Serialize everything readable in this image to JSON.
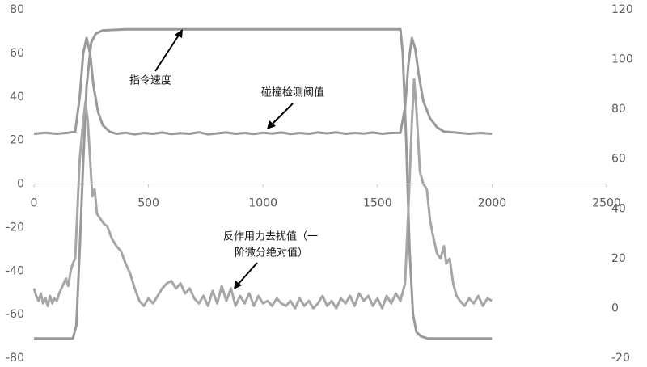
{
  "chart_data": {
    "type": "line",
    "xlim": [
      0,
      2500
    ],
    "xticks": [
      0,
      500,
      1000,
      1500,
      2000,
      2500
    ],
    "ylim": [
      -80,
      80
    ],
    "yticks": [
      -80,
      -60,
      -40,
      -20,
      0,
      20,
      40,
      60,
      80
    ],
    "y2lim": [
      -20,
      120
    ],
    "y2ticks": [
      -20,
      0,
      20,
      40,
      60,
      80,
      100,
      120
    ],
    "grid": false,
    "annotations": [
      {
        "text": [
          "指令速度"
        ]
      },
      {
        "text": [
          "碰撞检测阈值"
        ]
      },
      {
        "text": [
          "反作用力去扰值（一",
          "阶微分绝对值）"
        ]
      }
    ],
    "series": [
      {
        "name": "指令速度",
        "color": "#999999",
        "axis": "y",
        "x": [
          0,
          100,
          170,
          185,
          200,
          215,
          230,
          250,
          270,
          300,
          400,
          800,
          1200,
          1600,
          1610,
          1625,
          1640,
          1655,
          1670,
          1690,
          1720,
          1800,
          2000
        ],
        "values": [
          -71,
          -71,
          -71,
          -65,
          -30,
          10,
          45,
          65,
          69,
          70.5,
          71,
          71,
          71,
          71,
          60,
          20,
          -30,
          -60,
          -68,
          -70,
          -71,
          -71,
          -71
        ]
      },
      {
        "name": "碰撞检测阈值",
        "color": "#999999",
        "axis": "y",
        "x": [
          0,
          50,
          100,
          150,
          180,
          200,
          215,
          230,
          245,
          260,
          280,
          300,
          330,
          360,
          400,
          440,
          480,
          520,
          560,
          600,
          640,
          680,
          720,
          760,
          800,
          840,
          880,
          920,
          960,
          1000,
          1040,
          1080,
          1120,
          1160,
          1200,
          1240,
          1280,
          1320,
          1360,
          1400,
          1440,
          1480,
          1520,
          1560,
          1600,
          1620,
          1635,
          1650,
          1665,
          1680,
          1700,
          1730,
          1760,
          1790,
          1850,
          1900,
          1950,
          2000
        ],
        "values": [
          23,
          23.5,
          23,
          23.5,
          24,
          40,
          60,
          67,
          60,
          45,
          33,
          27,
          24,
          23,
          23.5,
          22.8,
          23.4,
          23,
          23.6,
          22.9,
          23.3,
          23,
          23.7,
          22.8,
          23.2,
          23.6,
          23,
          23.4,
          22.9,
          23.5,
          23.1,
          23.6,
          22.9,
          23.4,
          23,
          23.6,
          23.2,
          23.7,
          23,
          23.4,
          23.1,
          23.6,
          23,
          23.4,
          23.5,
          35,
          55,
          67,
          62,
          50,
          38,
          30,
          26,
          24,
          23.5,
          23,
          23.4,
          23
        ]
      },
      {
        "name": "反作用力去扰值",
        "color": "#a6a6a6",
        "axis": "y2",
        "x": [
          0,
          10,
          20,
          30,
          40,
          50,
          60,
          70,
          80,
          90,
          100,
          110,
          120,
          130,
          140,
          150,
          160,
          170,
          180,
          190,
          200,
          215,
          225,
          235,
          245,
          255,
          265,
          275,
          290,
          305,
          320,
          340,
          360,
          380,
          400,
          420,
          440,
          460,
          480,
          500,
          520,
          540,
          560,
          580,
          600,
          620,
          640,
          660,
          680,
          700,
          720,
          740,
          760,
          780,
          800,
          820,
          840,
          860,
          880,
          900,
          920,
          940,
          960,
          980,
          1000,
          1020,
          1040,
          1060,
          1080,
          1100,
          1120,
          1140,
          1160,
          1180,
          1200,
          1220,
          1240,
          1260,
          1280,
          1300,
          1320,
          1340,
          1360,
          1380,
          1400,
          1420,
          1440,
          1460,
          1480,
          1500,
          1520,
          1540,
          1560,
          1580,
          1600,
          1620,
          1635,
          1650,
          1660,
          1670,
          1685,
          1700,
          1715,
          1730,
          1745,
          1760,
          1775,
          1790,
          1800,
          1815,
          1830,
          1845,
          1860,
          1880,
          1900,
          1920,
          1940,
          1960,
          1980,
          2000
        ],
        "values": [
          8,
          5,
          3,
          6,
          2,
          4,
          1,
          5,
          2,
          4,
          3,
          6,
          8,
          10,
          12,
          9,
          15,
          18,
          20,
          40,
          60,
          75,
          83,
          75,
          60,
          45,
          48,
          38,
          36,
          34,
          33,
          28,
          25,
          23,
          18,
          14,
          8,
          3,
          1,
          4,
          2,
          5,
          8,
          10,
          11,
          8,
          10,
          6,
          8,
          4,
          2,
          5,
          1,
          7,
          2,
          9,
          3,
          8,
          1,
          5,
          2,
          6,
          1,
          5,
          2,
          3,
          1,
          4,
          2,
          1,
          3,
          0,
          4,
          1,
          3,
          0,
          2,
          5,
          1,
          3,
          0,
          4,
          2,
          5,
          1,
          6,
          3,
          5,
          1,
          4,
          0,
          5,
          2,
          6,
          3,
          10,
          40,
          75,
          92,
          80,
          55,
          50,
          48,
          35,
          28,
          22,
          20,
          25,
          18,
          20,
          10,
          5,
          3,
          1,
          4,
          2,
          5,
          1,
          4,
          3
        ]
      }
    ]
  }
}
